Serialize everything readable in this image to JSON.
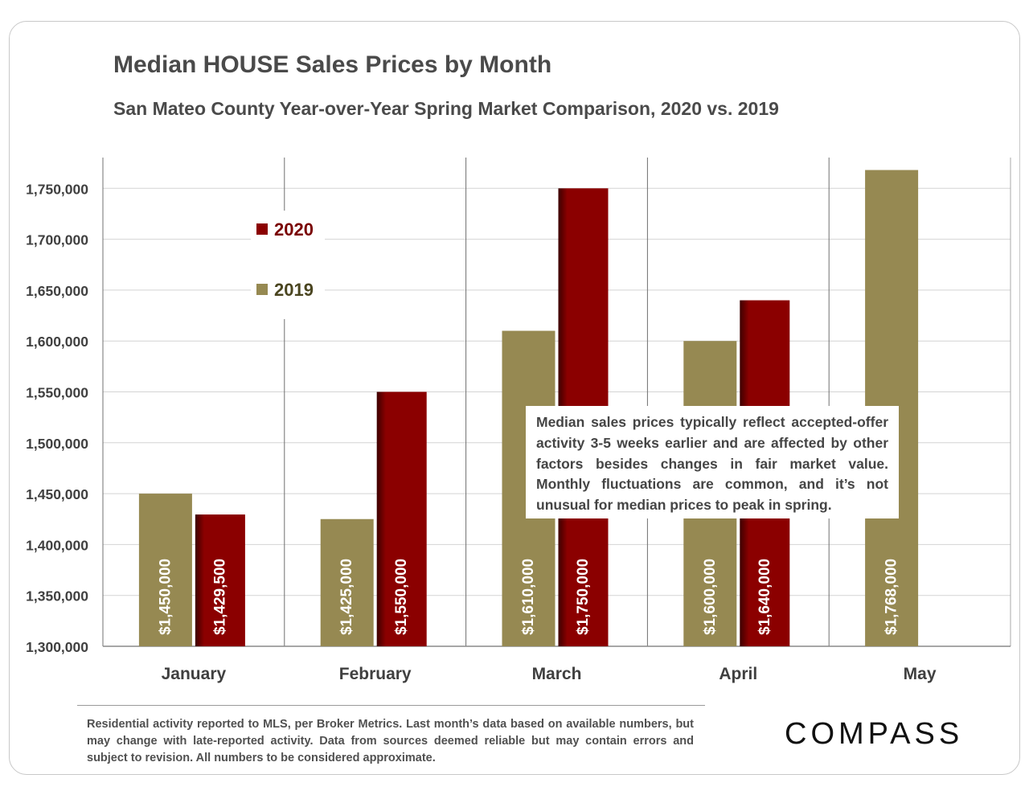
{
  "title": "Median HOUSE Sales Prices by Month",
  "subtitle": "San Mateo County Year-over-Year Spring Market Comparison, 2020 vs. 2019",
  "note": "Median sales prices typically reflect accepted-offer activity 3-5 weeks earlier and are affected by other factors besides changes in fair market value. Monthly fluctuations are common, and it’s not unusual for median prices to peak in spring.",
  "footer": "Residential activity reported to MLS, per Broker Metrics. Last month’s data based on available numbers, but may change with late-reported activity. Data from sources deemed reliable but may contain errors and subject to revision. All numbers to be considered approximate.",
  "logo": "COMPASS",
  "colors": {
    "2019": "#968952",
    "2020": "#8b0000"
  },
  "chart_data": {
    "type": "bar",
    "title": "Median HOUSE Sales Prices by Month",
    "categories": [
      "January",
      "February",
      "March",
      "April",
      "May"
    ],
    "series": [
      {
        "name": "2019",
        "values": [
          1450000,
          1425000,
          1610000,
          1600000,
          1768000
        ],
        "labels": [
          "$1,450,000",
          "$1,425,000",
          "$1,610,000",
          "$1,600,000",
          "$1,768,000"
        ]
      },
      {
        "name": "2020",
        "values": [
          1429500,
          1550000,
          1750000,
          1640000,
          null
        ],
        "labels": [
          "$1,429,500",
          "$1,550,000",
          "$1,750,000",
          "$1,640,000",
          ""
        ]
      }
    ],
    "ylim": [
      1300000,
      1780000
    ],
    "yticks": [
      1300000,
      1350000,
      1400000,
      1450000,
      1500000,
      1550000,
      1600000,
      1650000,
      1700000,
      1750000
    ],
    "ytick_labels": [
      "1,300,000",
      "1,350,000",
      "1,400,000",
      "1,450,000",
      "1,500,000",
      "1,550,000",
      "1,600,000",
      "1,650,000",
      "1,700,000",
      "1,750,000"
    ],
    "legend": [
      "2020",
      "2019"
    ],
    "legend_position": "top-left",
    "grid": true,
    "xlabel": "",
    "ylabel": ""
  }
}
